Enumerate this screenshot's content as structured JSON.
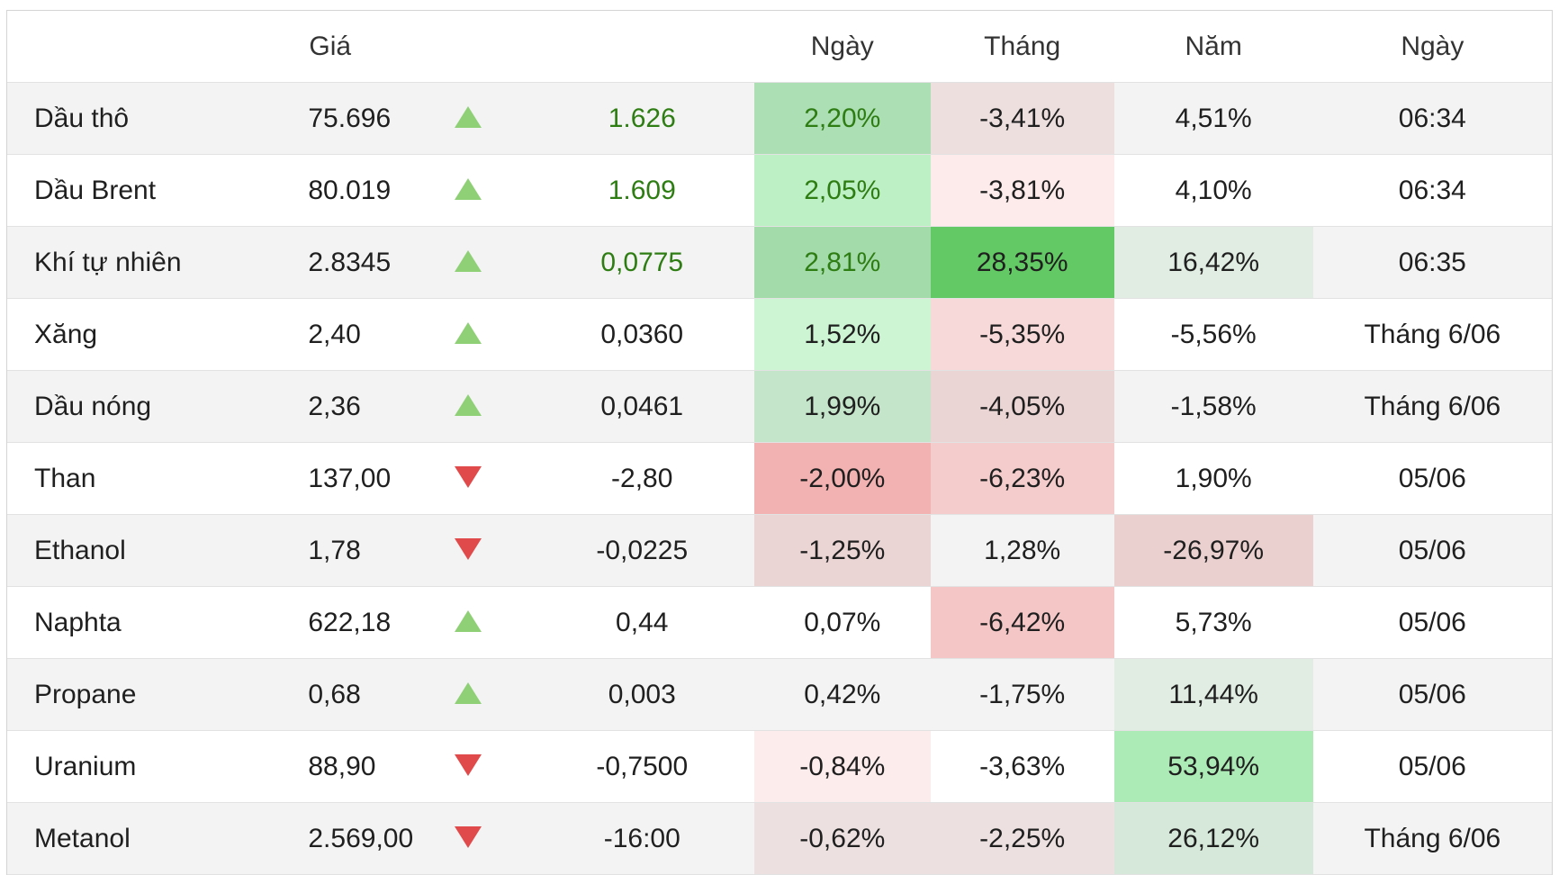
{
  "header": {
    "name": "",
    "price": "Giá",
    "arrow": "",
    "change": "",
    "day": "Ngày",
    "month": "Tháng",
    "year": "Năm",
    "date": "Ngày"
  },
  "rows": [
    {
      "name": "Dầu thô",
      "price": "75.696",
      "direction": "up",
      "change": "1.626",
      "change_highlight": true,
      "day": "2,20%",
      "month": "-3,41%",
      "year": "4,51%",
      "date": "06:34",
      "day_bg": "#acdfb4",
      "month_bg": "#eedfdf",
      "year_bg": ""
    },
    {
      "name": "Dầu Brent",
      "price": "80.019",
      "direction": "up",
      "change": "1.609",
      "change_highlight": true,
      "day": "2,05%",
      "month": "-3,81%",
      "year": "4,10%",
      "date": "06:34",
      "day_bg": "#bdf0c5",
      "month_bg": "#fdebeb",
      "year_bg": ""
    },
    {
      "name": "Khí tự nhiên",
      "price": "2.8345",
      "direction": "up",
      "change": "0,0775",
      "change_highlight": true,
      "day": "2,81%",
      "month": "28,35%",
      "year": "16,42%",
      "date": "06:35",
      "day_bg": "#a3dbab",
      "month_bg": "#63c964",
      "year_bg": "#e1ede3"
    },
    {
      "name": "Xăng",
      "price": "2,40",
      "direction": "up",
      "change": "0,0360",
      "change_highlight": false,
      "day": "1,52%",
      "month": "-5,35%",
      "year": "-5,56%",
      "date": "Tháng 6/06",
      "day_bg": "#cdf5d3",
      "month_bg": "#f8d9d9",
      "year_bg": ""
    },
    {
      "name": "Dầu nóng",
      "price": "2,36",
      "direction": "up",
      "change": "0,0461",
      "change_highlight": false,
      "day": "1,99%",
      "month": "-4,05%",
      "year": "-1,58%",
      "date": "Tháng 6/06",
      "day_bg": "#c4e5c9",
      "month_bg": "#ebd4d4",
      "year_bg": ""
    },
    {
      "name": "Than",
      "price": "137,00",
      "direction": "down",
      "change": "-2,80",
      "change_highlight": false,
      "day": "-2,00%",
      "month": "-6,23%",
      "year": "1,90%",
      "date": "05/06",
      "day_bg": "#f3b2b2",
      "month_bg": "#f5cccc",
      "year_bg": ""
    },
    {
      "name": "Ethanol",
      "price": "1,78",
      "direction": "down",
      "change": "-0,0225",
      "change_highlight": false,
      "day": "-1,25%",
      "month": "1,28%",
      "year": "-26,97%",
      "date": "05/06",
      "day_bg": "#ebd4d4",
      "month_bg": "",
      "year_bg": "#ebd0d0"
    },
    {
      "name": "Naphta",
      "price": "622,18",
      "direction": "up",
      "change": "0,44",
      "change_highlight": false,
      "day": "0,07%",
      "month": "-6,42%",
      "year": "5,73%",
      "date": "05/06",
      "day_bg": "",
      "month_bg": "#f5c6c6",
      "year_bg": ""
    },
    {
      "name": "Propane",
      "price": "0,68",
      "direction": "up",
      "change": "0,003",
      "change_highlight": false,
      "day": "0,42%",
      "month": "-1,75%",
      "year": "11,44%",
      "date": "05/06",
      "day_bg": "",
      "month_bg": "",
      "year_bg": "#e1ede3"
    },
    {
      "name": "Uranium",
      "price": "88,90",
      "direction": "down",
      "change": "-0,7500",
      "change_highlight": false,
      "day": "-0,84%",
      "month": "-3,63%",
      "year": "53,94%",
      "date": "05/06",
      "day_bg": "#fdecec",
      "month_bg": "",
      "year_bg": "#acebb5"
    },
    {
      "name": "Metanol",
      "price": "2.569,00",
      "direction": "down",
      "change": "-16:00",
      "change_highlight": false,
      "day": "-0,62%",
      "month": "-2,25%",
      "year": "26,12%",
      "date": "Tháng 6/06",
      "day_bg": "#ece0e0",
      "month_bg": "#ece0e0",
      "year_bg": "#d5e8d9"
    }
  ],
  "colors": {
    "up_arrow": "#8fd077",
    "down_arrow": "#e04a4a",
    "positive_text": "#2e7d13"
  }
}
